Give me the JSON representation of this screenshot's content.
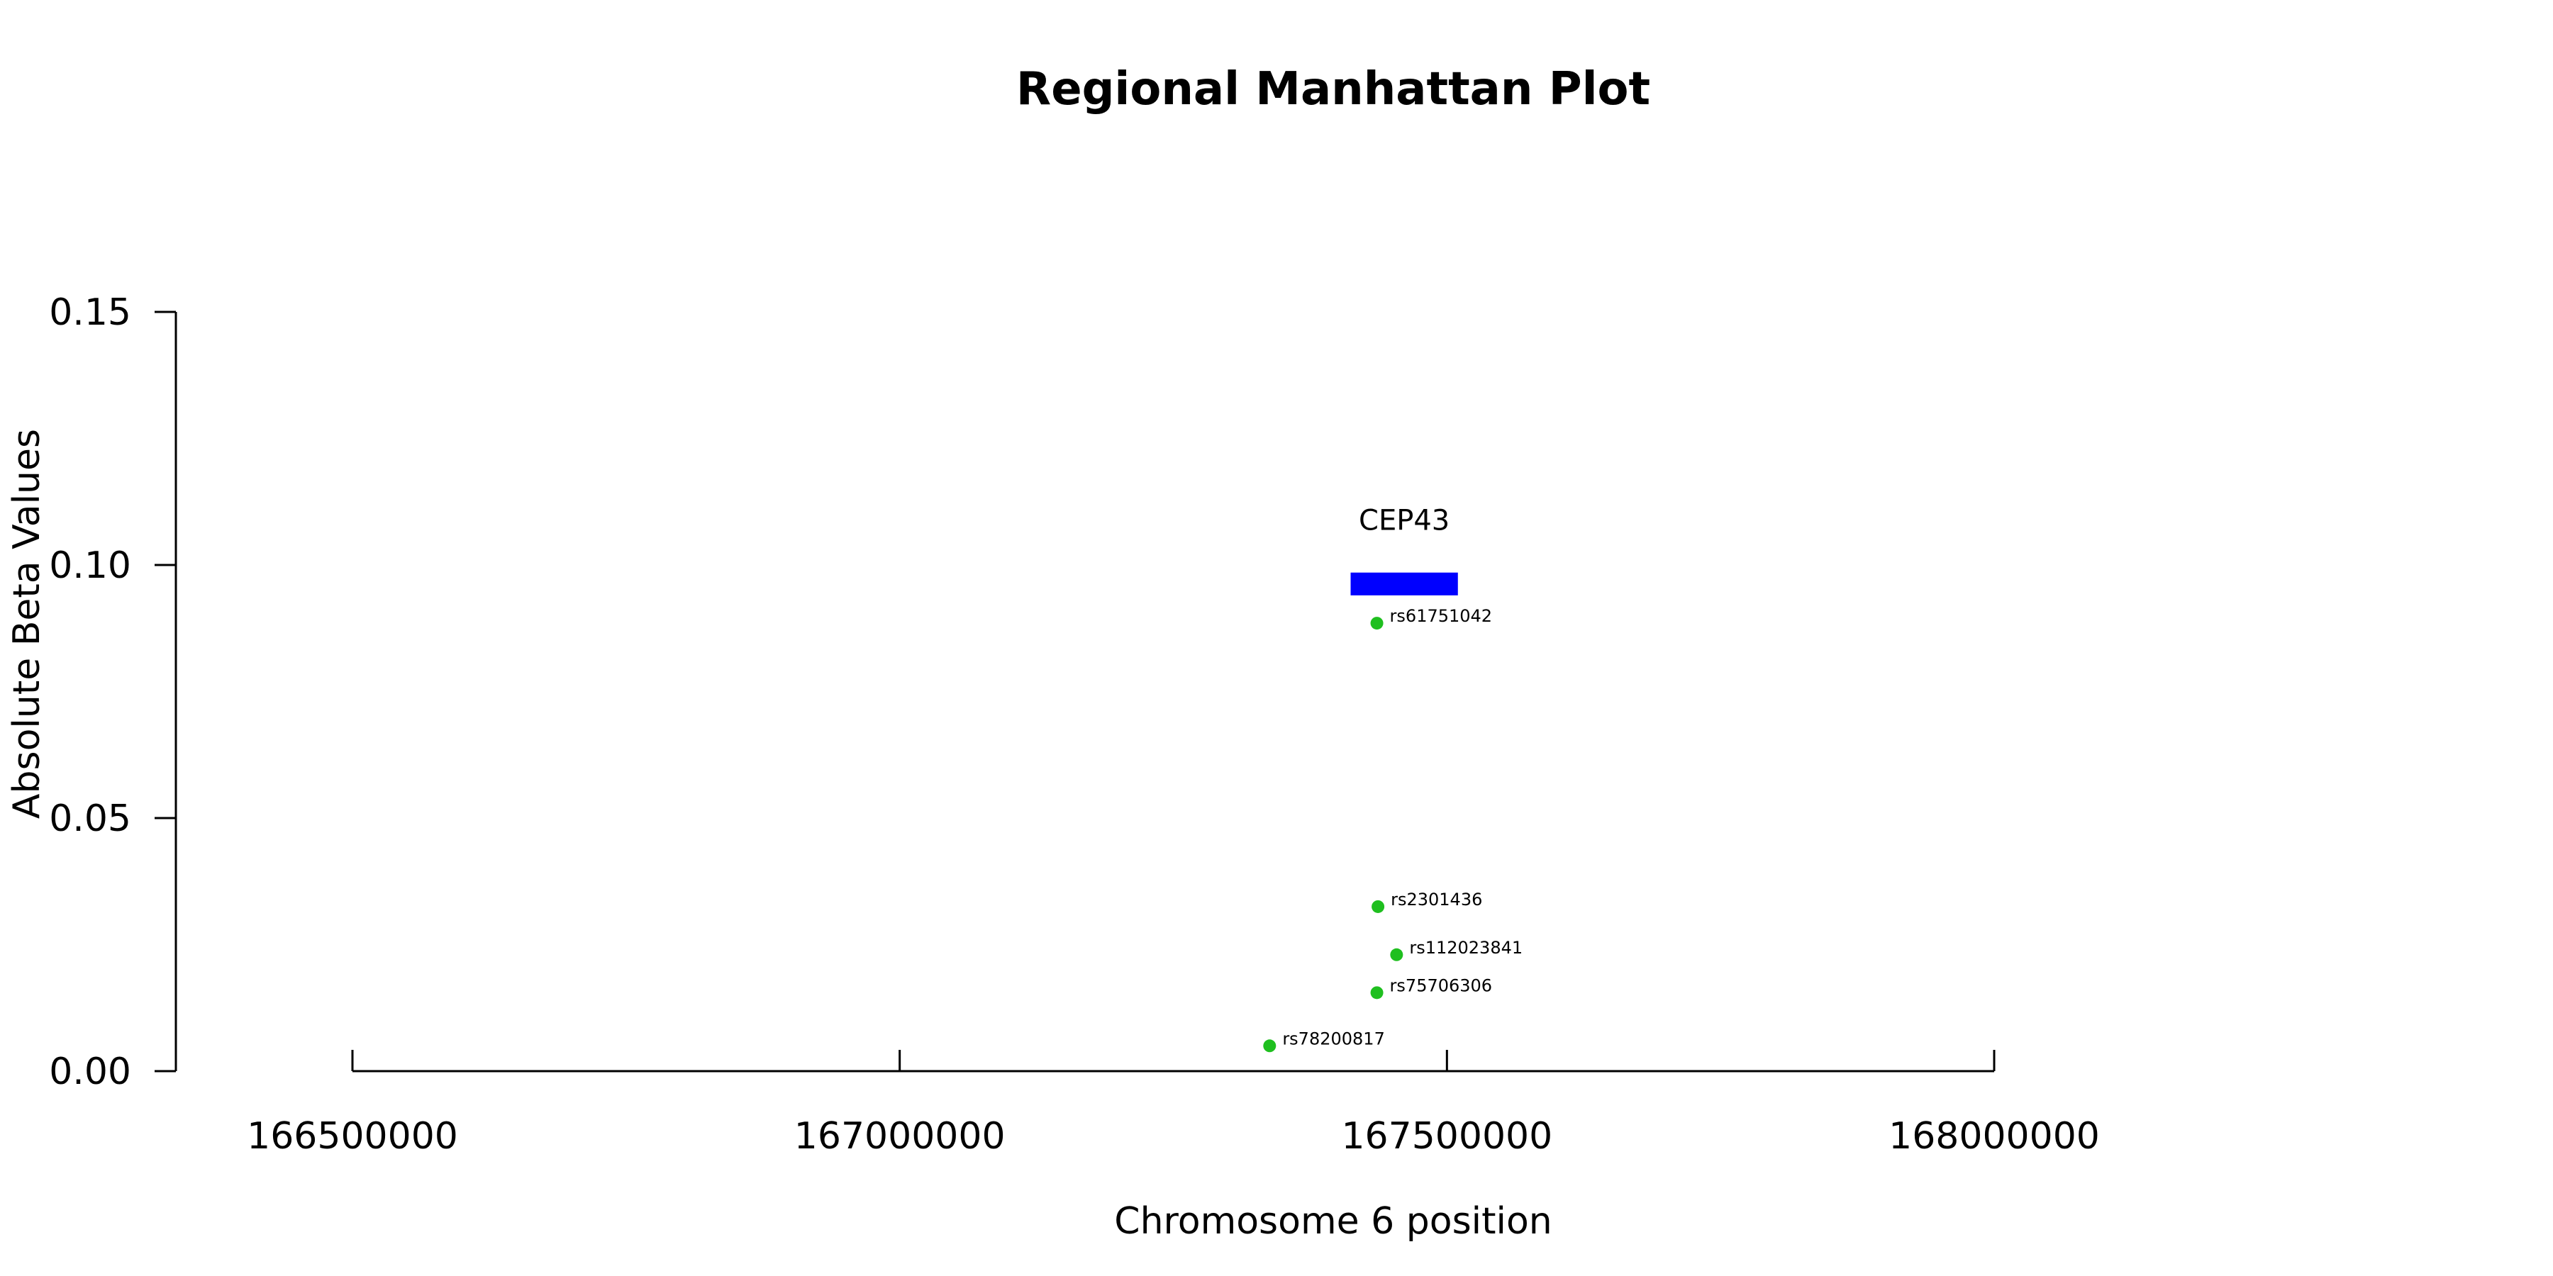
{
  "chart_data": {
    "type": "scatter",
    "title": "Regional Manhattan Plot",
    "xlabel": "Chromosome 6 position",
    "ylabel": "Absolute Beta Values",
    "xlim": [
      166500000,
      168000000
    ],
    "ylim": [
      0,
      0.15
    ],
    "x_ticks": [
      166500000,
      167000000,
      167500000,
      168000000
    ],
    "x_tick_labels": [
      "166500000",
      "167000000",
      "167500000",
      "168000000"
    ],
    "y_ticks": [
      0,
      0.05,
      0.1,
      0.15
    ],
    "y_tick_labels": [
      "0.00",
      "0.05",
      "0.10",
      "0.15"
    ],
    "point_color": "#1fbf1f",
    "points": [
      {
        "label": "rs61751042",
        "x": 167436000,
        "y": 0.0885
      },
      {
        "label": "rs2301436",
        "x": 167437000,
        "y": 0.0325
      },
      {
        "label": "rs112023841",
        "x": 167454000,
        "y": 0.023
      },
      {
        "label": "rs75706306",
        "x": 167436000,
        "y": 0.0155
      },
      {
        "label": "rs78200817",
        "x": 167338000,
        "y": 0.005
      }
    ],
    "gene": {
      "name": "CEP43",
      "start": 167412000,
      "end": 167510000,
      "y_low": 0.094,
      "y_high": 0.0985,
      "color": "#0000ff"
    }
  }
}
